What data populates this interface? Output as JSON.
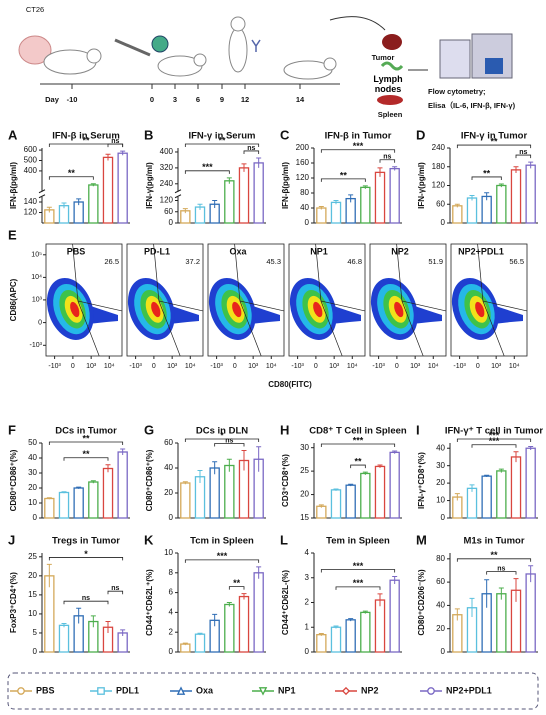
{
  "schematic": {
    "cell_line": "CT26",
    "day_label": "Day",
    "days": [
      -10,
      0,
      3,
      6,
      9,
      12,
      14
    ],
    "organs": [
      "Tumor",
      "Lymph nodes",
      "Spleen"
    ],
    "methods": [
      "Flow cytometry;",
      "Elisa（IL-6, IFN-β, IFN-γ)"
    ]
  },
  "legend": [
    {
      "name": "PBS",
      "color": "#d4a95a"
    },
    {
      "name": "PDL1",
      "color": "#5bc0de"
    },
    {
      "name": "Oxa",
      "color": "#2f6db5"
    },
    {
      "name": "NP1",
      "color": "#4cae4c"
    },
    {
      "name": "NP2",
      "color": "#d9463f"
    },
    {
      "name": "NP2+PDL1",
      "color": "#7a68c4"
    }
  ],
  "chart_data": [
    {
      "type": "bar",
      "panel": "A",
      "title": "IFN-β in Serum",
      "y_label": "IFN-β(pg/ml)",
      "values": [
        125,
        133,
        140,
        265,
        530,
        570
      ],
      "errors": [
        5,
        5,
        6,
        12,
        30,
        20
      ],
      "ylim": [
        100,
        620
      ],
      "ybreak": [
        150,
        200
      ],
      "yticks": [
        120,
        140,
        400,
        500,
        600
      ],
      "comparisons": [
        {
          "label": "**",
          "between": [
            0,
            3
          ]
        },
        {
          "label": "ns",
          "between": [
            4,
            5
          ]
        },
        {
          "label": "**",
          "between": [
            0,
            5
          ]
        }
      ]
    },
    {
      "type": "bar",
      "panel": "B",
      "title": "IFN-γ in Serum",
      "y_label": "IFN-γ(pg/ml)",
      "values": [
        65,
        85,
        100,
        255,
        320,
        345
      ],
      "errors": [
        12,
        15,
        20,
        15,
        20,
        25
      ],
      "ylim": [
        0,
        420
      ],
      "ybreak": [
        140,
        200
      ],
      "yticks": [
        0,
        60,
        120,
        240,
        320,
        400
      ],
      "comparisons": [
        {
          "label": "***",
          "between": [
            0,
            3
          ]
        },
        {
          "label": "ns",
          "between": [
            4,
            5
          ]
        },
        {
          "label": "**",
          "between": [
            0,
            5
          ]
        }
      ]
    },
    {
      "type": "bar",
      "panel": "C",
      "title": "IFN-β in Tumor",
      "y_label": "IFN-β(pg/ml)",
      "values": [
        40,
        55,
        65,
        95,
        135,
        145
      ],
      "errors": [
        4,
        5,
        10,
        4,
        12,
        5
      ],
      "ylim": [
        0,
        200
      ],
      "yticks": [
        0,
        40,
        80,
        120,
        160,
        200
      ],
      "comparisons": [
        {
          "label": "**",
          "between": [
            0,
            3
          ]
        },
        {
          "label": "ns",
          "between": [
            4,
            5
          ]
        },
        {
          "label": "***",
          "between": [
            0,
            5
          ]
        }
      ]
    },
    {
      "type": "bar",
      "panel": "D",
      "title": "IFN-γ in Tumor",
      "y_label": "IFN-γ(pg/ml)",
      "values": [
        55,
        80,
        85,
        120,
        170,
        185
      ],
      "errors": [
        5,
        8,
        12,
        5,
        10,
        10
      ],
      "ylim": [
        0,
        240
      ],
      "yticks": [
        0,
        60,
        120,
        180,
        240
      ],
      "comparisons": [
        {
          "label": "**",
          "between": [
            1,
            3
          ]
        },
        {
          "label": "ns",
          "between": [
            4,
            5
          ]
        },
        {
          "label": "**",
          "between": [
            0,
            5
          ]
        }
      ]
    },
    {
      "type": "flow",
      "panel": "E",
      "x_label": "CD80(FITC)",
      "y_label": "CD86(APC)",
      "xlim": [
        -3000,
        50000
      ],
      "ylim": [
        -3000,
        300000
      ],
      "xticks": [
        {
          "value": -1000,
          "label": "-10³"
        },
        0,
        {
          "value": 1000,
          "label": "10³"
        },
        {
          "value": 10000,
          "label": "10⁴"
        }
      ],
      "yticks": [
        {
          "value": -1000,
          "label": "-10³"
        },
        0,
        {
          "value": 1000,
          "label": "10³"
        },
        {
          "value": 10000,
          "label": "10⁴"
        },
        {
          "value": 100000,
          "label": "10⁵"
        }
      ],
      "panels": [
        {
          "name": "PBS",
          "value": 26.5
        },
        {
          "name": "PD-L1",
          "value": 37.2
        },
        {
          "name": "Oxa",
          "value": 45.3
        },
        {
          "name": "NP1",
          "value": 46.8
        },
        {
          "name": "NP2",
          "value": 51.9
        },
        {
          "name": "NP2+PDL1",
          "value": 56.5
        }
      ]
    },
    {
      "type": "bar",
      "panel": "F",
      "title": "DCs in Tumor",
      "y_label": "CD80⁺CD86⁺(%)",
      "values": [
        13,
        17,
        20,
        24,
        33,
        44
      ],
      "errors": [
        0.5,
        0.5,
        0.6,
        0.8,
        2.5,
        2
      ],
      "ylim": [
        0,
        50
      ],
      "yticks": [
        0,
        10,
        20,
        30,
        40,
        50
      ],
      "comparisons": [
        {
          "label": "**",
          "between": [
            1,
            4
          ]
        },
        {
          "label": "**",
          "between": [
            0,
            5
          ]
        }
      ]
    },
    {
      "type": "bar",
      "panel": "G",
      "title": "DCs in DLN",
      "y_label": "CD80⁺CD86⁺(%)",
      "values": [
        28,
        33,
        40,
        42,
        46,
        47
      ],
      "errors": [
        1,
        5,
        5,
        5,
        8,
        10
      ],
      "ylim": [
        0,
        60
      ],
      "yticks": [
        0,
        20,
        40,
        60
      ],
      "comparisons": [
        {
          "label": "ns",
          "between": [
            2,
            4
          ]
        },
        {
          "label": "*",
          "between": [
            0,
            5
          ]
        }
      ]
    },
    {
      "type": "bar",
      "panel": "H",
      "title": "CD8⁺ T Cell in Spleen",
      "y_label": "CD3⁺CD8⁺(%)",
      "values": [
        17.5,
        21,
        22,
        24.5,
        26,
        29
      ],
      "errors": [
        0.3,
        0.2,
        0.2,
        0.3,
        0.3,
        0.3
      ],
      "ylim": [
        15,
        31
      ],
      "yticks": [
        15,
        20,
        25,
        30
      ],
      "comparisons": [
        {
          "label": "**",
          "between": [
            2,
            3
          ]
        },
        {
          "label": "***",
          "between": [
            0,
            5
          ]
        }
      ]
    },
    {
      "type": "bar",
      "panel": "I",
      "title": "IFN-γ⁺ T cell  in Tumor",
      "y_label": "IFN-γ⁺CD8⁺(%)",
      "values": [
        12,
        17,
        24,
        27,
        35,
        40
      ],
      "errors": [
        2,
        2,
        0.5,
        1,
        3,
        1
      ],
      "ylim": [
        0,
        43
      ],
      "yticks": [
        0,
        10,
        20,
        30,
        40
      ],
      "comparisons": [
        {
          "label": "***",
          "between": [
            1,
            4
          ]
        },
        {
          "label": "***",
          "between": [
            0,
            5
          ]
        }
      ]
    },
    {
      "type": "bar",
      "panel": "J",
      "title": "Tregs in Tumor",
      "y_label": "FoxP3⁺CD4⁺(%)",
      "values": [
        20,
        7,
        9.5,
        8,
        6.5,
        5
      ],
      "errors": [
        3,
        0.5,
        2,
        1.5,
        1.5,
        0.8
      ],
      "ylim": [
        0,
        26
      ],
      "yticks": [
        0,
        5,
        10,
        15,
        20,
        25
      ],
      "comparisons": [
        {
          "label": "ns",
          "between": [
            1,
            4
          ]
        },
        {
          "label": "ns",
          "between": [
            4,
            5
          ]
        },
        {
          "label": "*",
          "between": [
            0,
            5
          ]
        }
      ]
    },
    {
      "type": "bar",
      "panel": "K",
      "title": "Tcm in Spleen",
      "y_label": "CD44⁺CD62L⁺(%)",
      "values": [
        0.8,
        1.8,
        3.2,
        4.8,
        5.6,
        8
      ],
      "errors": [
        0.1,
        0.1,
        0.6,
        0.2,
        0.3,
        0.6
      ],
      "ylim": [
        0,
        10
      ],
      "yticks": [
        0,
        2,
        4,
        6,
        8,
        10
      ],
      "comparisons": [
        {
          "label": "**",
          "between": [
            3,
            4
          ]
        },
        {
          "label": "***",
          "between": [
            0,
            5
          ]
        }
      ]
    },
    {
      "type": "bar",
      "panel": "L",
      "title": "Tem in Spleen",
      "y_label": "CD44⁺CD62L-(%)",
      "values": [
        0.7,
        1,
        1.3,
        1.6,
        2.1,
        2.9
      ],
      "errors": [
        0.05,
        0.05,
        0.05,
        0.05,
        0.25,
        0.15
      ],
      "ylim": [
        0,
        4
      ],
      "yticks": [
        0,
        1,
        2,
        3,
        4
      ],
      "comparisons": [
        {
          "label": "***",
          "between": [
            1,
            4
          ]
        },
        {
          "label": "***",
          "between": [
            0,
            5
          ]
        }
      ]
    },
    {
      "type": "bar",
      "panel": "M",
      "title": "M1s in Tumor",
      "y_label": "CD80⁺CD206⁻(%)",
      "values": [
        32,
        38,
        50,
        50,
        53,
        67
      ],
      "errors": [
        5,
        8,
        12,
        5,
        10,
        7
      ],
      "ylim": [
        0,
        85
      ],
      "yticks": [
        0,
        20,
        40,
        60,
        80
      ],
      "comparisons": [
        {
          "label": "ns",
          "between": [
            2,
            4
          ]
        },
        {
          "label": "**",
          "between": [
            0,
            5
          ]
        }
      ]
    }
  ]
}
